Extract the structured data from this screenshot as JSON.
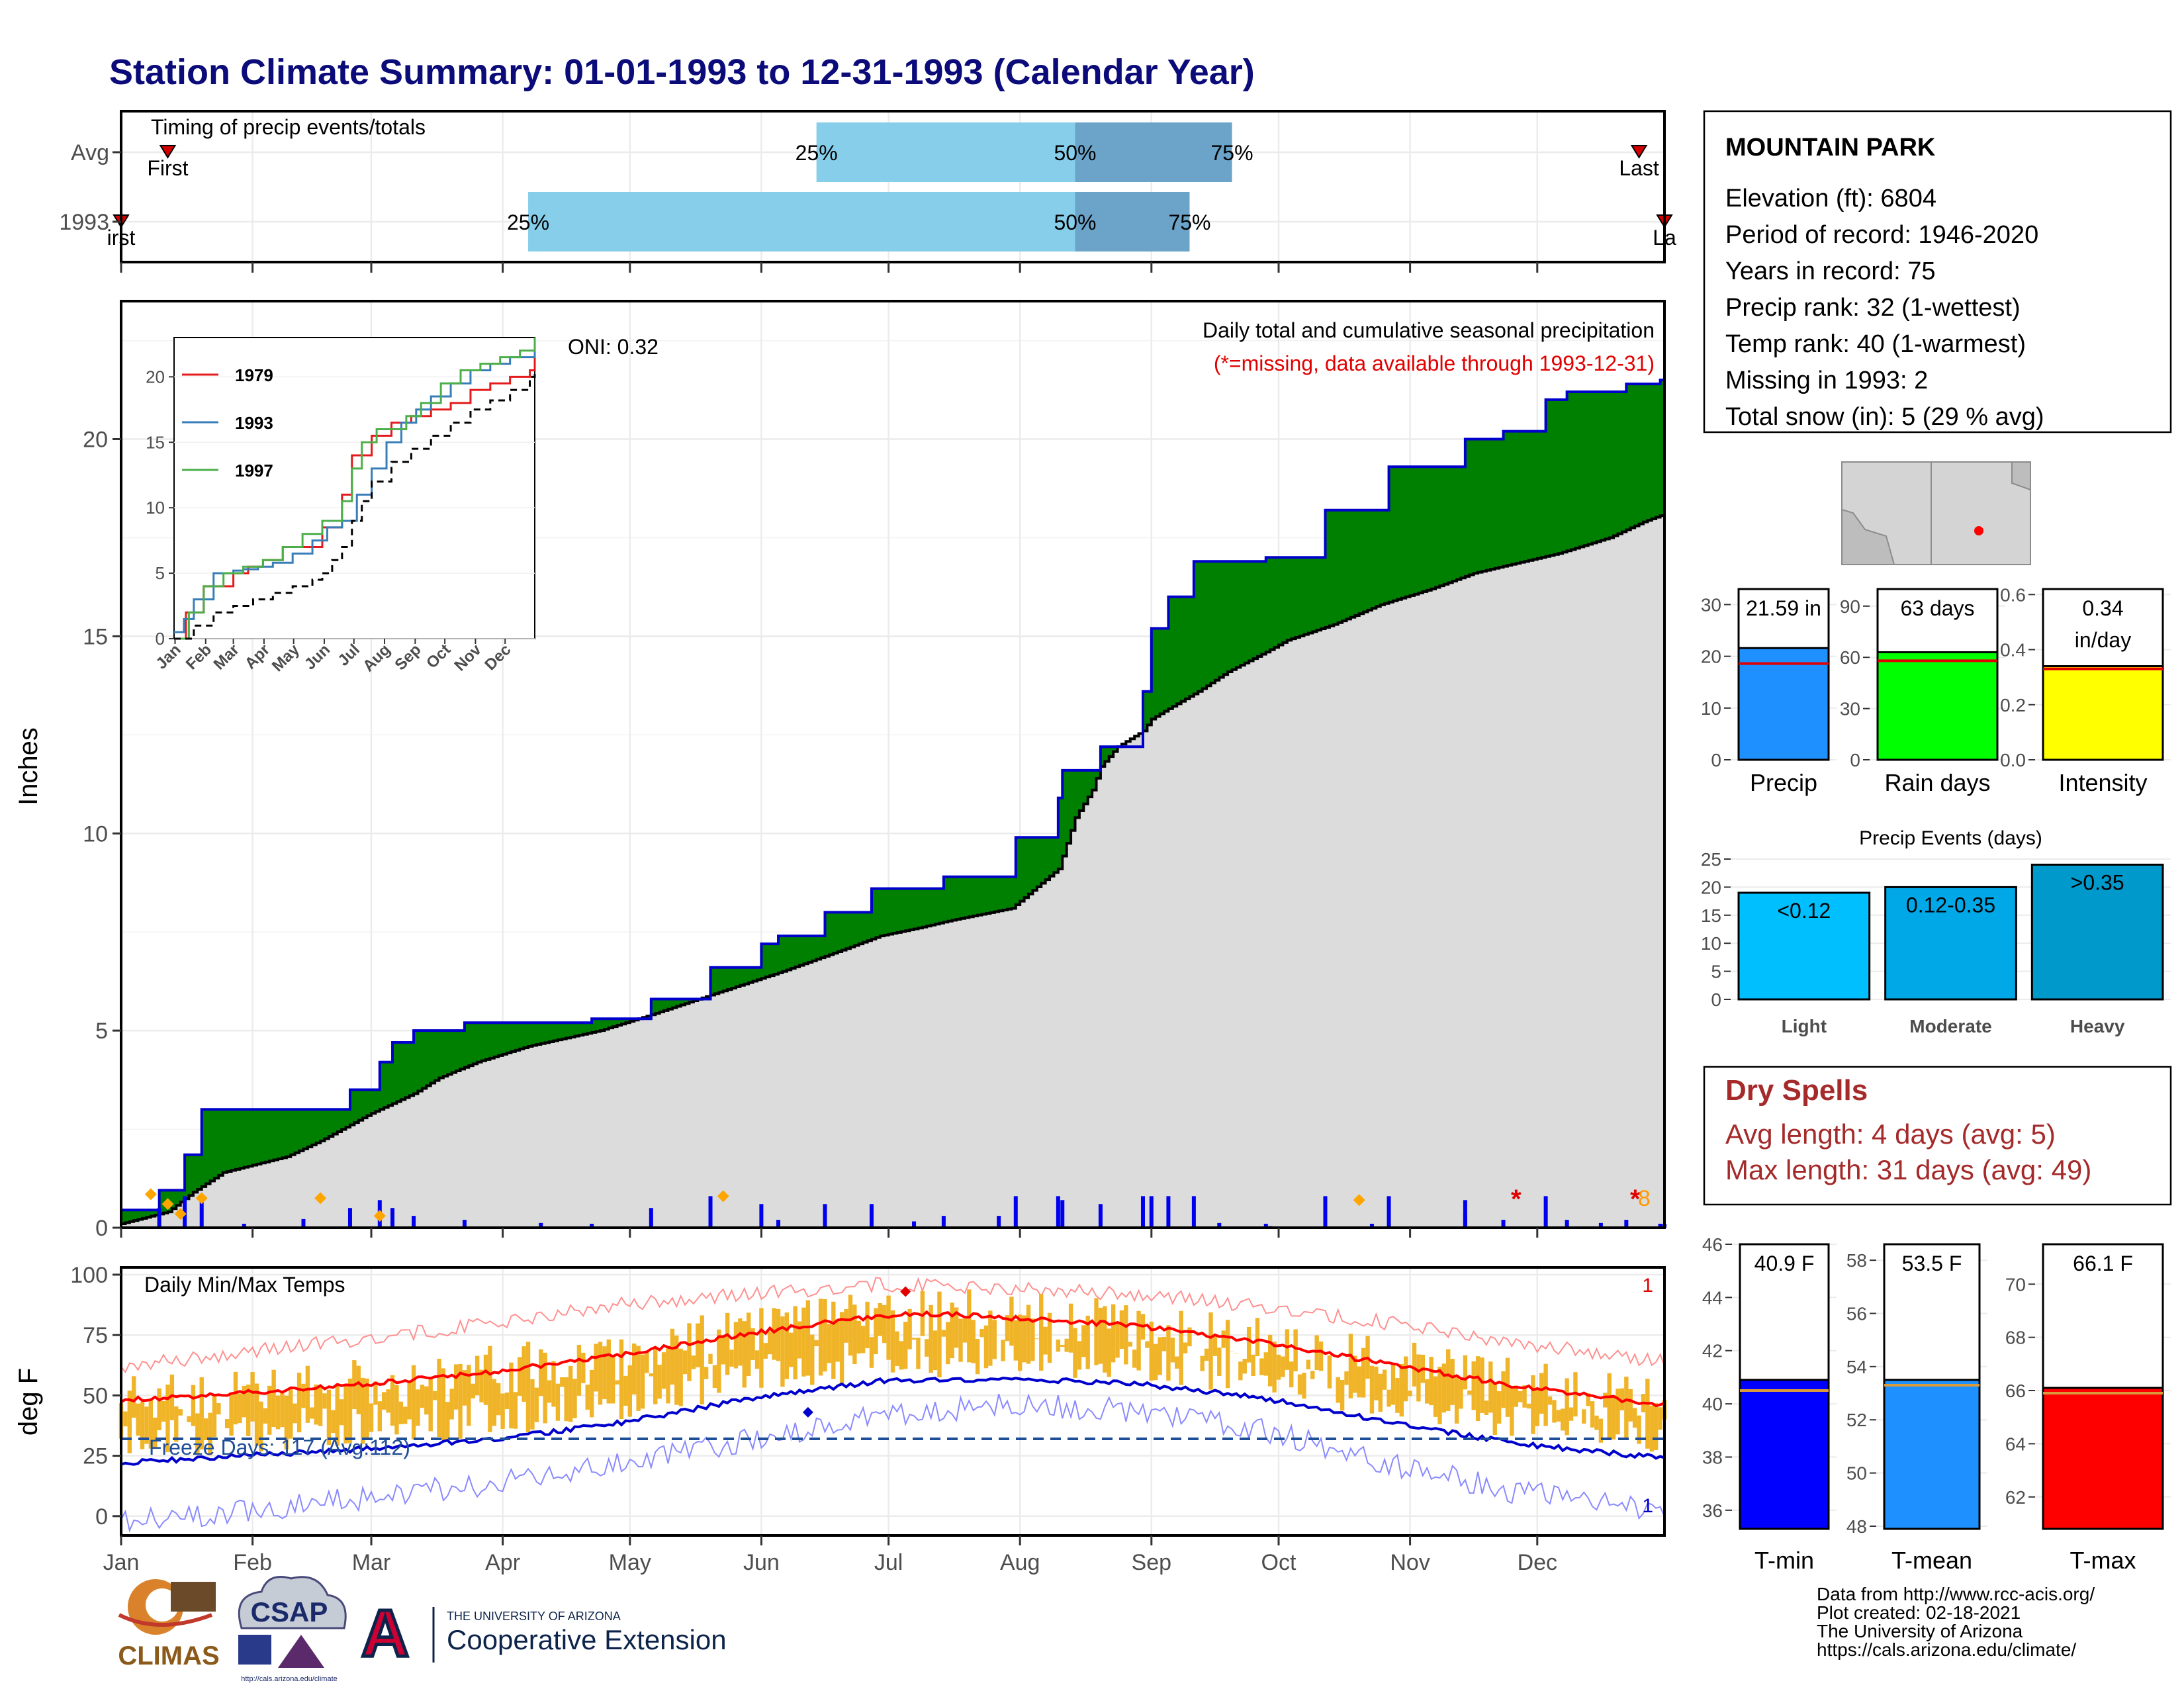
{
  "title": "Station Climate Summary: 01-01-1993 to 12-31-1993 (Calendar Year)",
  "months": [
    "Jan",
    "Feb",
    "Mar",
    "Apr",
    "May",
    "Jun",
    "Jul",
    "Aug",
    "Sep",
    "Oct",
    "Nov",
    "Dec"
  ],
  "timing_panel": {
    "title": "Timing of precip events/totals",
    "rows": [
      {
        "label": "Avg",
        "first_day": 12,
        "q25_day": 165,
        "q50_day": 226,
        "q75_day": 263,
        "last_day": 359,
        "first_label": "First",
        "last_label": "Last",
        "q25_label": "25%",
        "q50_label": "50%",
        "q75_label": "75%"
      },
      {
        "label": "1993",
        "first_day": 1,
        "q25_day": 97,
        "q50_day": 226,
        "q75_day": 253,
        "last_day": 365,
        "first_label": "irst",
        "last_label": "La",
        "q25_label": "25%",
        "q50_label": "50%",
        "q75_label": "75%"
      }
    ],
    "colors": {
      "light": "#87ceeb",
      "dark": "#6ba3c9",
      "marker": "#d40000"
    }
  },
  "precip_panel": {
    "ylabel": "Inches",
    "yticks": [
      "0",
      "5",
      "10",
      "15",
      "20"
    ],
    "title": "Daily total and cumulative seasonal precipitation",
    "subtitle": "(*=missing, data available through 1993-12-31)",
    "oni": "ONI: 0.32",
    "fill_colors": {
      "surplus": "#008000",
      "average": "#dcdcdc",
      "line": "#0000cc"
    },
    "missing_marker_1": "*",
    "missing_marker_2": "*",
    "missing_value": "8"
  },
  "inset_panel": {
    "yticks": [
      "0",
      "5",
      "10",
      "15",
      "20"
    ],
    "legend": [
      {
        "name": "1979",
        "color": "#e41a1c"
      },
      {
        "name": "1993",
        "color": "#377eb8"
      },
      {
        "name": "1997",
        "color": "#4daf4a"
      }
    ]
  },
  "temp_panel": {
    "ylabel": "deg F",
    "title": "Daily Min/Max Temps",
    "yticks": [
      "0",
      "25",
      "50",
      "75",
      "100"
    ],
    "freeze_label": "Freeze Days: 117 (Avg:112)",
    "freeze_line_value": 32,
    "record_high_count": "1",
    "record_low_count": "1",
    "colors": {
      "bars": "#f0b429",
      "avg_max": "#ff0000",
      "avg_min": "#0000cc"
    }
  },
  "station_info": {
    "name": "MOUNTAIN PARK",
    "lines": [
      "Elevation (ft): 6804",
      "Period of record: 1946-2020",
      "Years in record: 75",
      "Precip rank: 32 (1-wettest)",
      "Temp rank: 40 (1-warmest)",
      "Missing in 1993: 2",
      "Total snow (in): 5 (29 % avg)"
    ]
  },
  "precip_bars": {
    "panels": [
      {
        "label": "Precip",
        "value": 21.59,
        "value_label": "21.59 in",
        "avg": 18.6,
        "ymax": 33,
        "ticks": [
          "0",
          "10",
          "20",
          "30"
        ],
        "tick_values": [
          0,
          10,
          20,
          30
        ],
        "color": "#1e90ff"
      },
      {
        "label": "Rain days",
        "value": 63,
        "value_label": "63 days",
        "avg": 58,
        "ymax": 100,
        "ticks": [
          "0",
          "30",
          "60",
          "90"
        ],
        "tick_values": [
          0,
          30,
          60,
          90
        ],
        "color": "#00ff00"
      },
      {
        "label": "Intensity",
        "value": 0.34,
        "value_label": "0.34",
        "value_label2": "in/day",
        "avg": 0.33,
        "ymax": 0.62,
        "ticks": [
          "0.0",
          "0.2",
          "0.4",
          "0.6"
        ],
        "tick_values": [
          0,
          0.2,
          0.4,
          0.6
        ],
        "color": "#ffff00"
      }
    ]
  },
  "events_chart": {
    "title": "Precip Events (days)",
    "type": "bar",
    "categories": [
      "Light",
      "Moderate",
      "Heavy"
    ],
    "bar_labels": [
      "<0.12",
      "0.12-0.35",
      ">0.35"
    ],
    "values": [
      19,
      20,
      24
    ],
    "yticks": [
      "0",
      "5",
      "10",
      "15",
      "20",
      "25"
    ],
    "colors": [
      "#00bfff",
      "#00a8e8",
      "#0099cc"
    ]
  },
  "dry_spells": {
    "title": "Dry Spells",
    "line1": "Avg length: 4 days (avg: 5)",
    "line2": "Max length: 31 days (avg: 49)",
    "color": "#a52a2a"
  },
  "temp_bars": {
    "panels": [
      {
        "label": "T-min",
        "value": 40.9,
        "value_label": "40.9 F",
        "avg": 40.5,
        "ymin": 35.3,
        "ymax": 46,
        "ticks": [
          "36",
          "38",
          "40",
          "42",
          "44",
          "46"
        ],
        "tick_values": [
          36,
          38,
          40,
          42,
          44,
          46
        ],
        "color": "#0000ff"
      },
      {
        "label": "T-mean",
        "value": 53.5,
        "value_label": "53.5 F",
        "avg": 53.3,
        "ymin": 47.9,
        "ymax": 58.6,
        "ticks": [
          "48",
          "50",
          "52",
          "54",
          "56",
          "58"
        ],
        "tick_values": [
          48,
          50,
          52,
          54,
          56,
          58
        ],
        "color": "#1e90ff"
      },
      {
        "label": "T-max",
        "value": 66.1,
        "value_label": "66.1 F",
        "avg": 65.9,
        "ymin": 60.8,
        "ymax": 71.5,
        "ticks": [
          "62",
          "64",
          "66",
          "68",
          "70"
        ],
        "tick_values": [
          62,
          64,
          66,
          68,
          70
        ],
        "color": "#ff0000"
      }
    ]
  },
  "footer": {
    "lines": [
      "Data from http://www.rcc-acis.org/",
      "Plot created: 02-18-2021",
      "The University of Arizona",
      "https://cals.arizona.edu/climate/"
    ],
    "logo_climas": "CLIMAS",
    "logo_csap": "CSAP",
    "logo_csap_url": "http://cals.arizona.edu/climate",
    "ua_small": "THE UNIVERSITY OF ARIZONA",
    "ua_large": "Cooperative Extension",
    "ua_letter": "A"
  },
  "chart_data": [
    {
      "type": "area",
      "title": "Daily total and cumulative seasonal precipitation",
      "xlabel": "",
      "ylabel": "Inches",
      "ylim": [
        0,
        23.5
      ],
      "series": [
        {
          "name": "",
          "x_day": [
            1,
            12,
            18,
            25,
            40,
            48,
            60,
            70,
            76,
            85,
            97,
            114,
            126,
            140,
            157,
            170,
            180,
            189,
            197,
            211,
            222,
            226,
            230,
            232,
            236,
            242,
            244,
            247,
            255,
            262,
            271,
            276,
            287,
            298,
            310,
            320,
            340,
            352,
            360,
            365
          ],
          "values": [
            0.1,
            0.4,
            0.9,
            1.4,
            1.8,
            2.2,
            2.9,
            3.4,
            3.8,
            4.2,
            4.6,
            5.0,
            5.4,
            5.9,
            6.5,
            7.0,
            7.4,
            7.6,
            7.8,
            8.1,
            9.1,
            10.4,
            11.1,
            11.7,
            12.2,
            12.6,
            12.9,
            13.1,
            13.6,
            14.1,
            14.6,
            14.9,
            15.3,
            15.8,
            16.2,
            16.6,
            17.1,
            17.5,
            17.9,
            18.1
          ]
        },
        {
          "name": "",
          "x_day": [
            1,
            8,
            10,
            16,
            20,
            40,
            55,
            62,
            65,
            70,
            82,
            96,
            112,
            126,
            140,
            152,
            156,
            167,
            178,
            186,
            195,
            212,
            222,
            223,
            232,
            242,
            244,
            248,
            254,
            259,
            271,
            285,
            300,
            318,
            327,
            337,
            342,
            356,
            364,
            365
          ],
          "values": [
            0.45,
            0.45,
            0.95,
            1.85,
            3.0,
            3.0,
            3.5,
            4.2,
            4.7,
            5.0,
            5.2,
            5.2,
            5.3,
            5.8,
            6.6,
            7.2,
            7.4,
            8.0,
            8.6,
            8.6,
            8.9,
            9.9,
            10.9,
            11.6,
            12.2,
            13.6,
            15.2,
            16.0,
            16.9,
            16.9,
            17.0,
            18.2,
            19.3,
            20.0,
            20.2,
            21.0,
            21.2,
            21.4,
            21.5,
            21.6
          ]
        }
      ]
    },
    {
      "type": "line",
      "title": "",
      "categories": [
        "Jan",
        "Feb",
        "Mar",
        "Apr",
        "May",
        "Jun",
        "Jul",
        "Aug",
        "Sep",
        "Oct",
        "Nov",
        "Dec"
      ],
      "ylim": [
        0,
        23
      ],
      "series": [
        {
          "name": "1979",
          "x": [
            0,
            12,
            30,
            60,
            75,
            90,
            110,
            130,
            150,
            170,
            180,
            200,
            220,
            240,
            260,
            280,
            300,
            320,
            340,
            360,
            365
          ],
          "values": [
            0,
            2,
            4,
            5,
            5.5,
            6,
            7,
            7,
            8.5,
            11,
            14,
            15.5,
            16.5,
            17,
            17.5,
            18,
            19,
            19.5,
            20,
            20.5,
            21.5
          ]
        },
        {
          "name": "1993",
          "x": [
            0,
            10,
            20,
            40,
            60,
            70,
            85,
            100,
            120,
            140,
            155,
            170,
            185,
            200,
            215,
            230,
            245,
            260,
            280,
            300,
            320,
            340,
            365
          ],
          "values": [
            0.5,
            1.5,
            3,
            5,
            5.2,
            5.3,
            5.5,
            5.8,
            6.5,
            7.5,
            8.5,
            9,
            11,
            13,
            15,
            16.5,
            17.5,
            18.5,
            19.5,
            20.5,
            21,
            21.5,
            22
          ]
        },
        {
          "name": "1997",
          "x": [
            0,
            15,
            30,
            50,
            70,
            90,
            110,
            130,
            150,
            170,
            180,
            190,
            205,
            220,
            235,
            250,
            270,
            290,
            310,
            330,
            350,
            360,
            365
          ],
          "values": [
            0,
            2,
            4,
            5,
            5.5,
            6,
            7,
            8,
            9,
            10.5,
            13,
            15,
            16,
            16,
            17,
            18,
            19.5,
            20.5,
            21,
            21.5,
            22,
            22,
            23
          ]
        },
        {
          "name": "",
          "x": [
            0,
            20,
            40,
            60,
            80,
            100,
            120,
            140,
            150,
            160,
            170,
            180,
            190,
            200,
            220,
            240,
            260,
            280,
            300,
            320,
            340,
            360,
            365
          ],
          "values": [
            0,
            1,
            2,
            2.5,
            3,
            3.5,
            4,
            4.5,
            5,
            6,
            7,
            9,
            10.5,
            12,
            13.5,
            14.5,
            15.5,
            16.5,
            17.5,
            18.2,
            19,
            20,
            20.5
          ]
        }
      ]
    },
    {
      "type": "line",
      "title": "Daily Min/Max Temps",
      "ylabel": "deg F",
      "ylim": [
        -8,
        103
      ],
      "series": [
        {
          "name": "",
          "x_day": [
            1,
            30,
            60,
            90,
            120,
            150,
            180,
            195,
            210,
            240,
            270,
            300,
            330,
            365
          ],
          "values": [
            48,
            51,
            55,
            60,
            67,
            76,
            83,
            84,
            82,
            79,
            72,
            63,
            54,
            46
          ]
        },
        {
          "name": "",
          "x_day": [
            1,
            30,
            60,
            90,
            120,
            150,
            180,
            210,
            240,
            270,
            300,
            330,
            365
          ],
          "values": [
            22,
            25,
            28,
            32,
            39,
            49,
            56,
            57,
            55,
            49,
            39,
            30,
            24
          ]
        },
        {
          "name": "",
          "x_day": [
            1,
            30,
            60,
            90,
            120,
            150,
            180,
            210,
            240,
            270,
            300,
            330,
            365
          ],
          "values": [
            62,
            68,
            74,
            80,
            88,
            92,
            96,
            94,
            92,
            87,
            80,
            72,
            64
          ]
        },
        {
          "name": "",
          "x_day": [
            1,
            30,
            60,
            90,
            120,
            150,
            180,
            210,
            240,
            270,
            300,
            330,
            365
          ],
          "values": [
            -2,
            2,
            8,
            14,
            22,
            32,
            42,
            46,
            44,
            36,
            22,
            10,
            2
          ]
        }
      ]
    },
    {
      "type": "bar",
      "title": "Precip Events (days)",
      "categories": [
        "Light",
        "Moderate",
        "Heavy"
      ],
      "values": [
        19,
        20,
        24
      ],
      "ylim": [
        0,
        25
      ]
    }
  ]
}
